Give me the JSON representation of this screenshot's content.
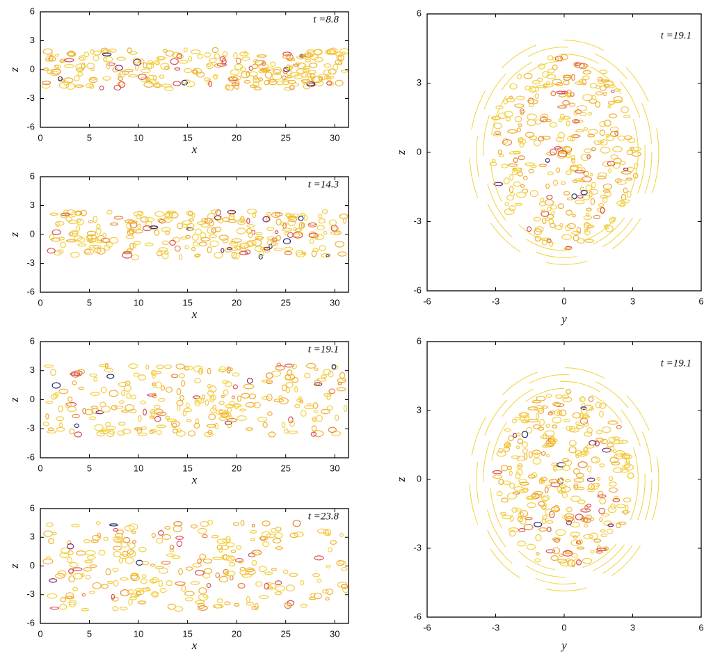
{
  "chart_data": [
    {
      "type": "contour",
      "annotation": "t =8.8",
      "xlabel": "x",
      "ylabel": "z",
      "xlim": [
        0,
        31.4
      ],
      "ylim": [
        -6,
        6
      ],
      "xticks": [
        0,
        5,
        10,
        15,
        20,
        25,
        30
      ],
      "yticks": [
        -6,
        -3,
        0,
        3,
        6
      ]
    },
    {
      "type": "contour",
      "annotation": "t =14.3",
      "xlabel": "x",
      "ylabel": "z",
      "xlim": [
        0,
        31.4
      ],
      "ylim": [
        -6,
        6
      ],
      "xticks": [
        0,
        5,
        10,
        15,
        20,
        25,
        30
      ],
      "yticks": [
        -6,
        -3,
        0,
        3,
        6
      ]
    },
    {
      "type": "contour",
      "annotation": "t =19.1",
      "xlabel": "x",
      "ylabel": "z",
      "xlim": [
        0,
        31.4
      ],
      "ylim": [
        -6,
        6
      ],
      "xticks": [
        0,
        5,
        10,
        15,
        20,
        25,
        30
      ],
      "yticks": [
        -6,
        -3,
        0,
        3,
        6
      ]
    },
    {
      "type": "contour",
      "annotation": "t =23.8",
      "xlabel": "x",
      "ylabel": "z",
      "xlim": [
        0,
        31.4
      ],
      "ylim": [
        -6,
        6
      ],
      "xticks": [
        0,
        5,
        10,
        15,
        20,
        25,
        30
      ],
      "yticks": [
        -6,
        -3,
        0,
        3,
        6
      ]
    },
    {
      "type": "contour",
      "annotation": "t =19.1",
      "xlabel": "y",
      "ylabel": "z",
      "xlim": [
        -6,
        6
      ],
      "ylim": [
        -6,
        6
      ],
      "xticks": [
        -6,
        -3,
        0,
        3,
        6
      ],
      "yticks": [
        -6,
        -3,
        0,
        3,
        6
      ]
    },
    {
      "type": "contour",
      "annotation": "t =19.1",
      "xlabel": "y",
      "ylabel": "z",
      "xlim": [
        -6,
        6
      ],
      "ylim": [
        -6,
        6
      ],
      "xticks": [
        -6,
        -3,
        0,
        3,
        6
      ],
      "yticks": [
        -6,
        -3,
        0,
        3,
        6
      ]
    }
  ]
}
